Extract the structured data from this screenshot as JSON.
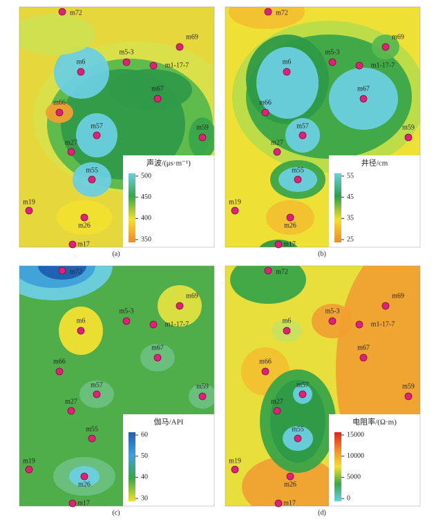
{
  "wells": [
    "m72",
    "m69",
    "m5-3",
    "m6",
    "m1-17-7",
    "m67",
    "m66",
    "m57",
    "m59",
    "m27",
    "m55",
    "m19",
    "m26",
    "m17"
  ],
  "panels": [
    {
      "caption": "(a)",
      "legend": {
        "title": "声波/(μs·m⁻¹)",
        "ticks": [
          350,
          400,
          450,
          500
        ],
        "colors": [
          "#f08a2a",
          "#f2e030",
          "#3aa548",
          "#6ccfe0"
        ]
      }
    },
    {
      "caption": "(b)",
      "legend": {
        "title": "井径/cm",
        "ticks": [
          25,
          35,
          45,
          55
        ],
        "colors": [
          "#f08a2a",
          "#f2e030",
          "#2e9e4a",
          "#6ccfe0"
        ]
      }
    },
    {
      "caption": "(c)",
      "legend": {
        "title": "伽马/API",
        "ticks": [
          30,
          40,
          50,
          60
        ],
        "colors": [
          "#f2e030",
          "#3aa548",
          "#40a0d8",
          "#1e5fb0"
        ]
      }
    },
    {
      "caption": "(d)",
      "legend": {
        "title": "电阻率/(Ω·m)",
        "ticks": [
          0,
          5000,
          10000,
          15000
        ],
        "colors": [
          "#6ccfe0",
          "#3aa548",
          "#f2e030",
          "#f08a2a",
          "#e02020"
        ]
      }
    }
  ]
}
